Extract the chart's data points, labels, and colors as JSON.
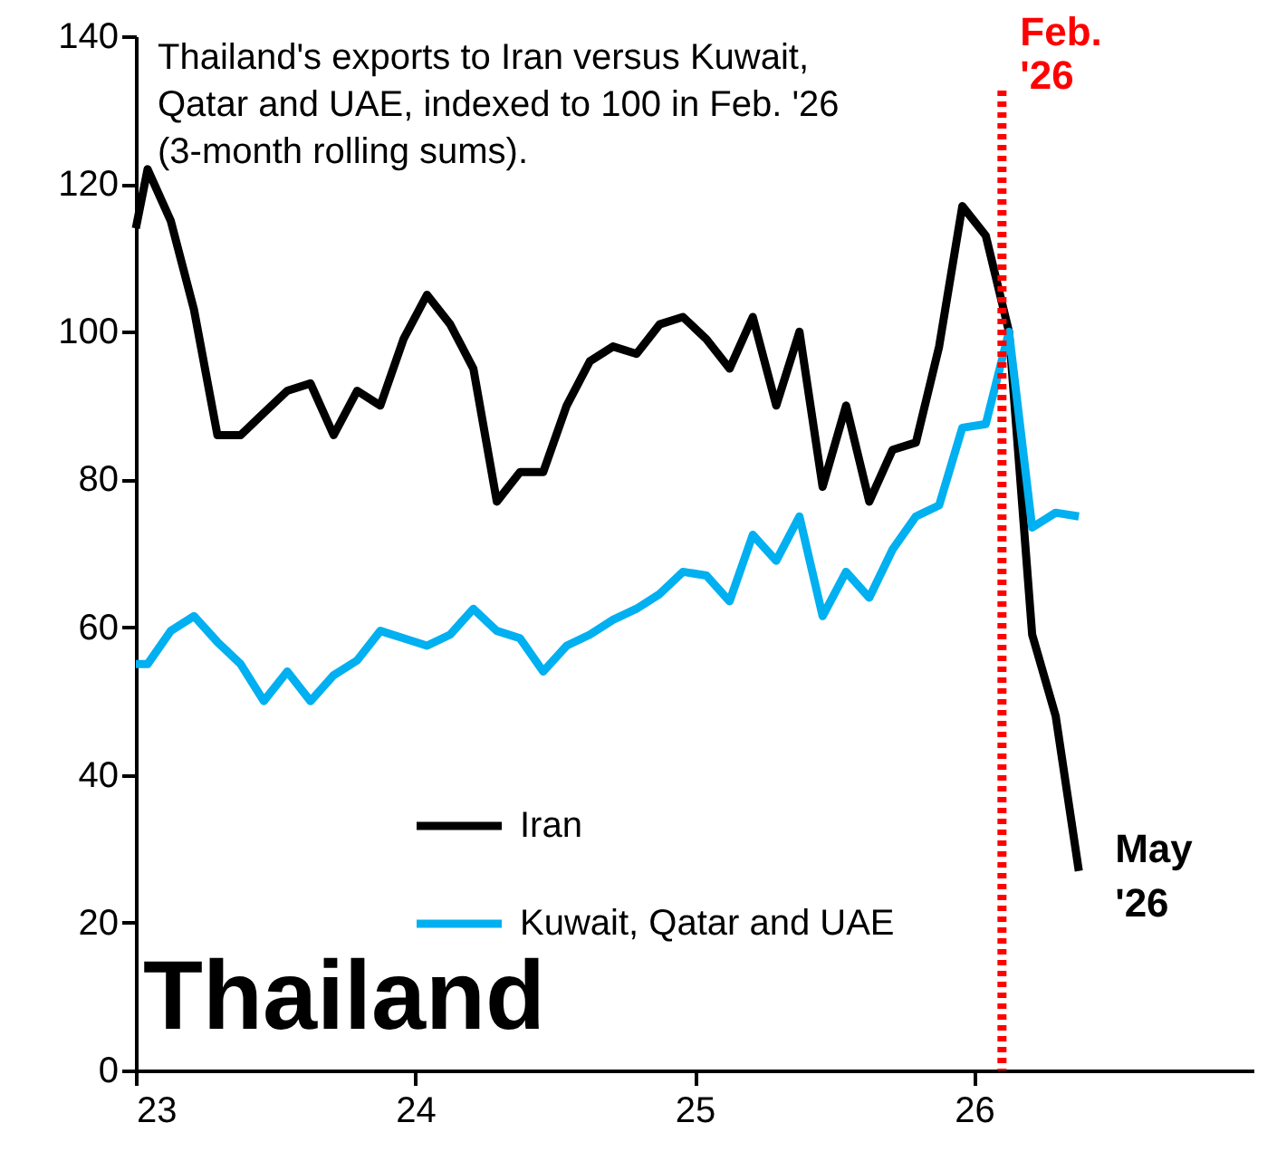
{
  "chart_data": {
    "type": "line",
    "title": "Thailand",
    "subtitle": "Thailand's exports to Iran versus Kuwait, Qatar and UAE, indexed to 100 in Feb. '26 (3-month rolling sums).",
    "x": [
      23,
      23.042,
      23.125,
      23.208,
      23.292,
      23.375,
      23.458,
      23.542,
      23.625,
      23.708,
      23.792,
      23.875,
      23.958,
      24.042,
      24.125,
      24.208,
      24.292,
      24.375,
      24.458,
      24.542,
      24.625,
      24.708,
      24.792,
      24.875,
      24.958,
      25.042,
      25.125,
      25.208,
      25.292,
      25.375,
      25.458,
      25.542,
      25.625,
      25.708,
      25.792,
      25.875,
      25.958,
      26.042,
      26.125,
      26.208,
      26.292,
      26.375
    ],
    "series": [
      {
        "name": "Iran",
        "color": "#000000",
        "values": [
          114,
          122,
          115,
          103,
          86,
          86,
          89,
          92,
          93,
          86,
          92,
          90,
          99,
          105,
          101,
          95,
          77,
          81,
          81,
          90,
          96,
          98,
          97,
          101,
          102,
          99,
          95,
          102,
          90,
          100,
          79,
          90,
          77,
          84,
          85,
          98,
          117,
          113,
          100,
          59,
          48,
          27
        ]
      },
      {
        "name": "Kuwait, Qatar and UAE",
        "color": "#00b0f0",
        "values": [
          55,
          55,
          59.5,
          61.5,
          58,
          55,
          50,
          54,
          50,
          53.5,
          55.5,
          59.5,
          58.5,
          57.5,
          59,
          62.5,
          59.5,
          58.5,
          54,
          57.5,
          59,
          61,
          62.5,
          64.5,
          67.5,
          67,
          63.5,
          72.5,
          69,
          75,
          61.5,
          67.5,
          64,
          70.5,
          75,
          76.5,
          87,
          87.5,
          100,
          73.5,
          75.5,
          75
        ]
      }
    ],
    "xlim": [
      23,
      27
    ],
    "xticks": [
      23,
      24,
      25,
      26
    ],
    "ylim": [
      0,
      140
    ],
    "yticks": [
      0,
      20,
      40,
      60,
      80,
      100,
      120,
      140
    ],
    "ref_lines": [
      {
        "axis": "x",
        "value": 26.1,
        "label": "Feb. '26",
        "color": "#ff0000",
        "line_style": "dotted"
      }
    ],
    "annotations": [
      {
        "text": "May '26",
        "x": 26.375,
        "y": 27
      }
    ],
    "legend": "bottom left",
    "grid": false,
    "marker": "none",
    "line_style": "solid"
  }
}
